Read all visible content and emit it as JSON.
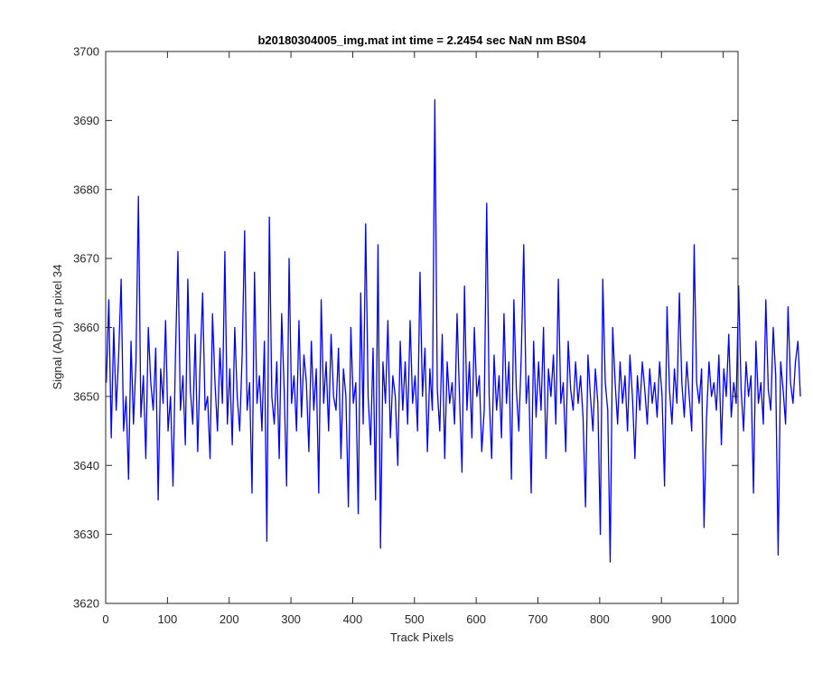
{
  "chart_data": {
    "type": "line",
    "title": "b20180304005_img.mat int time = 2.2454 sec  NaN nm BS04",
    "xlabel": "Track Pixels",
    "ylabel": "Signal (ADU) at pixel 34",
    "xlim": [
      0,
      1024
    ],
    "ylim": [
      3620,
      3700
    ],
    "xticks": [
      0,
      100,
      200,
      300,
      400,
      500,
      600,
      700,
      800,
      900,
      1000
    ],
    "yticks": [
      3620,
      3630,
      3640,
      3650,
      3660,
      3670,
      3680,
      3690,
      3700
    ],
    "grid": false,
    "box": true,
    "series": [
      {
        "color": "#0000ff",
        "x_start": 1,
        "x_step": 4,
        "values": [
          3652,
          3664,
          3644,
          3660,
          3648,
          3656,
          3667,
          3645,
          3650,
          3638,
          3658,
          3646,
          3655,
          3679,
          3647,
          3653,
          3641,
          3660,
          3652,
          3648,
          3657,
          3635,
          3654,
          3649,
          3661,
          3645,
          3650,
          3637,
          3656,
          3671,
          3648,
          3653,
          3643,
          3667,
          3651,
          3646,
          3659,
          3642,
          3655,
          3665,
          3648,
          3650,
          3641,
          3662,
          3652,
          3645,
          3657,
          3649,
          3671,
          3646,
          3654,
          3643,
          3660,
          3650,
          3645,
          3656,
          3674,
          3648,
          3652,
          3636,
          3668,
          3649,
          3653,
          3645,
          3658,
          3629,
          3676,
          3650,
          3646,
          3655,
          3641,
          3662,
          3651,
          3637,
          3670,
          3649,
          3653,
          3645,
          3661,
          3647,
          3656,
          3652,
          3642,
          3658,
          3648,
          3654,
          3636,
          3664,
          3649,
          3655,
          3645,
          3659,
          3650,
          3648,
          3657,
          3641,
          3654,
          3650,
          3634,
          3660,
          3649,
          3652,
          3633,
          3665,
          3646,
          3675,
          3650,
          3643,
          3657,
          3635,
          3672,
          3628,
          3655,
          3649,
          3661,
          3644,
          3653,
          3650,
          3640,
          3658,
          3648,
          3655,
          3646,
          3661,
          3649,
          3653,
          3645,
          3668,
          3650,
          3657,
          3642,
          3654,
          3648,
          3693,
          3651,
          3645,
          3659,
          3641,
          3655,
          3649,
          3652,
          3646,
          3662,
          3650,
          3639,
          3666,
          3648,
          3655,
          3644,
          3660,
          3650,
          3653,
          3642,
          3648,
          3678,
          3650,
          3641,
          3656,
          3648,
          3653,
          3644,
          3662,
          3649,
          3655,
          3638,
          3664,
          3651,
          3645,
          3656,
          3672,
          3649,
          3653,
          3636,
          3658,
          3647,
          3655,
          3648,
          3660,
          3641,
          3654,
          3650,
          3656,
          3646,
          3667,
          3649,
          3652,
          3642,
          3658,
          3651,
          3648,
          3655,
          3649,
          3653,
          3647,
          3634,
          3656,
          3650,
          3645,
          3654,
          3649,
          3630,
          3667,
          3652,
          3648,
          3626,
          3660,
          3652,
          3646,
          3655,
          3649,
          3653,
          3645,
          3656,
          3650,
          3641,
          3653,
          3648,
          3655,
          3651,
          3646,
          3654,
          3649,
          3652,
          3647,
          3655,
          3650,
          3637,
          3663,
          3651,
          3646,
          3654,
          3649,
          3665,
          3652,
          3647,
          3655,
          3650,
          3645,
          3672,
          3652,
          3649,
          3654,
          3631,
          3647,
          3655,
          3650,
          3652,
          3648,
          3656,
          3643,
          3654,
          3650,
          3659,
          3647,
          3652,
          3649,
          3666,
          3651,
          3645,
          3655,
          3650,
          3653,
          3636,
          3658,
          3649,
          3652,
          3646,
          3664,
          3651,
          3648,
          3660,
          3653,
          3627,
          3655,
          3651,
          3646,
          3663,
          3652,
          3649,
          3655,
          3658,
          3650
        ]
      }
    ]
  }
}
